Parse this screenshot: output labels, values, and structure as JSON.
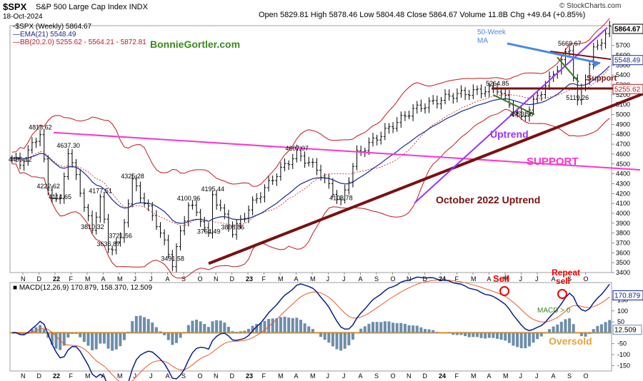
{
  "header": {
    "symbol": "$SPX",
    "name": "S&P 500 Large Cap Index INDX",
    "date": "18-Oct-2024",
    "ohlc": "Open 5829.81  High 5878.46  Low 5804.48  Close 5864.67  Volume 11.8B  Chg +49.64 (+0.85%)",
    "copyright": "© StockCharts.com"
  },
  "legend": {
    "price": "$SPX (Weekly) 5864.67",
    "ema": "EMA(21) 5548.49",
    "bb": "BB(20,2.0) 5255.62 - 5564.21 - 5872.81"
  },
  "colors": {
    "price": "#000000",
    "ema": "#1c2a8f",
    "bb": "#c0181f",
    "magenta": "#ff33cc",
    "purple": "#9933ff",
    "maroon": "#7a1010",
    "green_text": "#3a8a1c",
    "blue_arrow": "#4a86e8",
    "orange": "#e8a33a",
    "macd_line": "#0a1f8a",
    "signal_line": "#e85a2a",
    "hist": "#6d8dab"
  },
  "annotations": {
    "brand": "BonnieGortler.com",
    "ma50": "50-Week\nMA",
    "uptrend": "Uptrend",
    "support": "SUPPORT",
    "support_short": "Support",
    "oct_uptrend": "October 2022 Uptrend",
    "sell": "Sell",
    "repeat_sell": "Repeat\nsell",
    "macd_gt0": "MACD > 0",
    "oversold": "Oversold"
  },
  "chart_data": [
    {
      "type": "candlestick",
      "title": "$SPX (Weekly)",
      "ylim": [
        3400,
        5900
      ],
      "yticks": [
        3400,
        3500,
        3600,
        3700,
        3800,
        3900,
        4000,
        4100,
        4200,
        4300,
        4400,
        4500,
        4600,
        4700,
        4800,
        4900,
        5000,
        5100,
        5200,
        5300,
        5400,
        5500,
        5600,
        5700
      ],
      "last_label": "5864.67",
      "ema_label": "5548.49",
      "bb_label": "5255.62",
      "xticks": [
        "N",
        "D",
        "22",
        "F",
        "M",
        "A",
        "M",
        "J",
        "J",
        "A",
        "S",
        "O",
        "N",
        "D",
        "23",
        "F",
        "M",
        "A",
        "M",
        "J",
        "J",
        "A",
        "S",
        "O",
        "N",
        "D",
        "24",
        "F",
        "M",
        "A",
        "M",
        "J",
        "J",
        "A",
        "S",
        "O"
      ],
      "price_labels": [
        {
          "week": 2,
          "value": 4495.12,
          "text": "4495.12"
        },
        {
          "week": 7,
          "value": 4818.62,
          "text": "4818.62"
        },
        {
          "week": 9,
          "value": 4222.62,
          "text": "4222.62"
        },
        {
          "week": 12,
          "value": 4114.65,
          "text": "4114.65"
        },
        {
          "week": 14,
          "value": 4637.3,
          "text": "4637.30"
        },
        {
          "week": 22,
          "value": 4177.51,
          "text": "4177.51"
        },
        {
          "week": 20,
          "value": 3810.32,
          "text": "3810.32"
        },
        {
          "week": 24,
          "value": 3636.87,
          "text": "3636.87"
        },
        {
          "week": 27,
          "value": 3721.56,
          "text": "3721.56"
        },
        {
          "week": 30,
          "value": 4325.28,
          "text": "4325.28"
        },
        {
          "week": 40,
          "value": 3491.58,
          "text": "3491.58"
        },
        {
          "week": 44,
          "value": 4100.96,
          "text": "4100.96"
        },
        {
          "week": 49,
          "value": 3764.49,
          "text": "3764.49"
        },
        {
          "week": 50,
          "value": 4195.44,
          "text": "4195.44"
        },
        {
          "week": 55,
          "value": 3808.86,
          "text": "3808.86"
        },
        {
          "week": 71,
          "value": 4607.07,
          "text": "4607.07"
        },
        {
          "week": 82,
          "value": 4103.78,
          "text": "4103.78"
        },
        {
          "week": 121,
          "value": 5264.85,
          "text": "5264.85"
        },
        {
          "week": 127,
          "value": 4953.56,
          "text": "4953.56"
        },
        {
          "week": 139,
          "value": 5669.67,
          "text": "5669.67"
        },
        {
          "week": 141,
          "value": 5119.26,
          "text": "5119.26"
        }
      ]
    },
    {
      "type": "line",
      "title": "MACD(12,26,9) 170.879, 158.370, 12.509",
      "series": [
        {
          "name": "MACD",
          "last": 170.879
        },
        {
          "name": "Signal",
          "last": 158.37
        },
        {
          "name": "Histogram",
          "last": 12.509
        }
      ],
      "ylim": [
        -175,
        230
      ],
      "yticks": [
        -150,
        -100,
        -50,
        50,
        100,
        150
      ],
      "labels": [
        "170.879",
        "158.370",
        "12.509"
      ]
    }
  ]
}
